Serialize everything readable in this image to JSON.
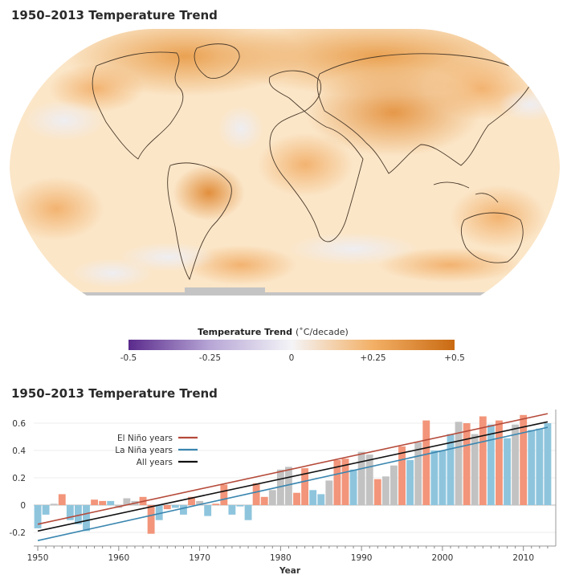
{
  "map": {
    "title": "1950–2013 Temperature Trend",
    "colorbar": {
      "label_bold": "Temperature Trend",
      "label_unit": "(˚C/decade)",
      "ticks": [
        "-0.5",
        "-0.25",
        "0",
        "+0.25",
        "+0.5"
      ],
      "tick_values": [
        -0.5,
        -0.25,
        0,
        0.25,
        0.5
      ],
      "colors": [
        "#5a2a8c",
        "#b7a6d6",
        "#f4f4f7",
        "#f3b066",
        "#c96a12"
      ]
    },
    "colors": {
      "land_outline": "#4a3a2a",
      "no_data": "#c4c4c4",
      "ocean_base": "#fbe6c8"
    }
  },
  "chart_data": {
    "type": "bar",
    "title": "1950–2013 Temperature Trend",
    "xlabel": "Year",
    "ylabel": "",
    "xlim": [
      1949.5,
      2014
    ],
    "ylim": [
      -0.3,
      0.7
    ],
    "x_ticks": [
      1950,
      1960,
      1970,
      1980,
      1990,
      2000,
      2010
    ],
    "y_ticks": [
      -0.2,
      0,
      0.2,
      0.4,
      0.6
    ],
    "y_tick_labels": [
      "-0.2",
      "0",
      "0.2",
      "0.4",
      "0.6"
    ],
    "legend_placement": "top-left",
    "legend": [
      {
        "label": "El Niño years",
        "color": "#b54a3a"
      },
      {
        "label": "La Niña years",
        "color": "#3a86b0"
      },
      {
        "label": "All years",
        "color": "#111111"
      }
    ],
    "bar_colors": {
      "el_nino": "#f2957a",
      "la_nina": "#8ec5dd",
      "neutral": "#c2c2c2"
    },
    "years": [
      1950,
      1951,
      1952,
      1953,
      1954,
      1955,
      1956,
      1957,
      1958,
      1959,
      1960,
      1961,
      1962,
      1963,
      1964,
      1965,
      1966,
      1967,
      1968,
      1969,
      1970,
      1971,
      1972,
      1973,
      1974,
      1975,
      1976,
      1977,
      1978,
      1979,
      1980,
      1981,
      1982,
      1983,
      1984,
      1985,
      1986,
      1987,
      1988,
      1989,
      1990,
      1991,
      1992,
      1993,
      1994,
      1995,
      1996,
      1997,
      1998,
      1999,
      2000,
      2001,
      2002,
      2003,
      2004,
      2005,
      2006,
      2007,
      2008,
      2009,
      2010,
      2011,
      2012,
      2013
    ],
    "values": [
      -0.17,
      -0.07,
      0.01,
      0.08,
      -0.11,
      -0.14,
      -0.19,
      0.04,
      0.03,
      0.03,
      -0.02,
      0.05,
      0.03,
      0.06,
      -0.21,
      -0.11,
      -0.03,
      -0.02,
      -0.07,
      0.06,
      0.03,
      -0.08,
      0.01,
      0.15,
      -0.07,
      -0.01,
      -0.11,
      0.16,
      0.06,
      0.11,
      0.26,
      0.28,
      0.09,
      0.27,
      0.11,
      0.08,
      0.18,
      0.33,
      0.34,
      0.26,
      0.39,
      0.37,
      0.19,
      0.21,
      0.29,
      0.43,
      0.33,
      0.46,
      0.62,
      0.4,
      0.4,
      0.52,
      0.61,
      0.6,
      0.52,
      0.65,
      0.59,
      0.62,
      0.49,
      0.59,
      0.66,
      0.55,
      0.56,
      0.6
    ],
    "categories": [
      "la_nina",
      "la_nina",
      "neutral",
      "el_nino",
      "la_nina",
      "la_nina",
      "la_nina",
      "el_nino",
      "el_nino",
      "la_nina",
      "neutral",
      "neutral",
      "neutral",
      "el_nino",
      "el_nino",
      "la_nina",
      "el_nino",
      "la_nina",
      "la_nina",
      "el_nino",
      "neutral",
      "la_nina",
      "el_nino",
      "el_nino",
      "la_nina",
      "la_nina",
      "la_nina",
      "el_nino",
      "el_nino",
      "neutral",
      "neutral",
      "neutral",
      "el_nino",
      "el_nino",
      "la_nina",
      "la_nina",
      "neutral",
      "el_nino",
      "el_nino",
      "la_nina",
      "neutral",
      "neutral",
      "el_nino",
      "neutral",
      "neutral",
      "el_nino",
      "la_nina",
      "neutral",
      "el_nino",
      "la_nina",
      "la_nina",
      "la_nina",
      "neutral",
      "el_nino",
      "neutral",
      "el_nino",
      "la_nina",
      "el_nino",
      "la_nina",
      "neutral",
      "el_nino",
      "la_nina",
      "la_nina",
      "la_nina"
    ],
    "trend_lines": [
      {
        "group": "el_nino",
        "color": "#b54a3a",
        "y_1950": -0.14,
        "y_2013": 0.67
      },
      {
        "group": "la_nina",
        "color": "#3a86b0",
        "y_1950": -0.26,
        "y_2013": 0.57
      },
      {
        "group": "all",
        "color": "#111111",
        "y_1950": -0.19,
        "y_2013": 0.61
      }
    ]
  }
}
